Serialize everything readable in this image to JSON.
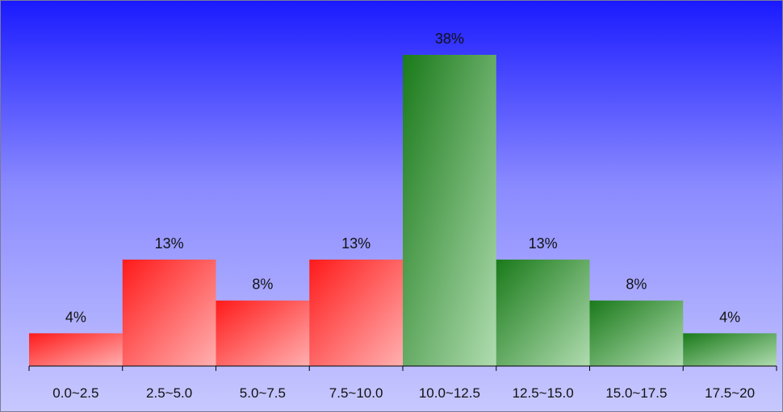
{
  "chart_data": {
    "type": "bar",
    "categories": [
      "0.0~2.5",
      "2.5~5.0",
      "5.0~7.5",
      "7.5~10.0",
      "10.0~12.5",
      "12.5~15.0",
      "15.0~17.5",
      "17.5~20"
    ],
    "values": [
      4,
      13,
      8,
      13,
      38,
      13,
      8,
      4
    ],
    "data_labels": [
      "4%",
      "13%",
      "8%",
      "13%",
      "38%",
      "13%",
      "8%",
      "4%"
    ],
    "bar_colors": [
      "red",
      "red",
      "red",
      "red",
      "green",
      "green",
      "green",
      "green"
    ],
    "ylim": [
      0,
      38
    ],
    "grid": false,
    "legend": "none"
  },
  "colors": {
    "red_dark": "#ff1a1a",
    "red_light": "#ffb0b0",
    "green_dark": "#1a7a1a",
    "green_light": "#b0dcb0",
    "axis": "#000000"
  }
}
